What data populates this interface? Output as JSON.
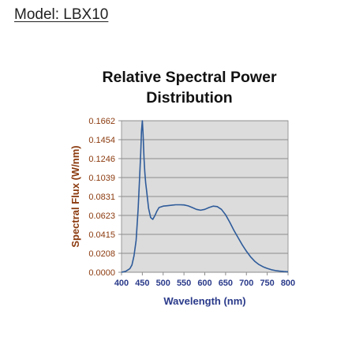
{
  "header": {
    "model_label": "Model: LBX10"
  },
  "chart_data": {
    "type": "line",
    "title_line1": "Relative Spectral Power",
    "title_line2": "Distribution",
    "xlabel": "Wavelength (nm)",
    "ylabel": "Spectral Flux (W/nm)",
    "xlim": [
      400,
      800
    ],
    "ylim": [
      0,
      0.1662
    ],
    "x_ticks": [
      "400",
      "450",
      "500",
      "550",
      "600",
      "650",
      "700",
      "750",
      "800"
    ],
    "y_ticks": [
      "0.0000",
      "0.0208",
      "0.0415",
      "0.0623",
      "0.0831",
      "0.1039",
      "0.1246",
      "0.1454",
      "0.1662"
    ],
    "grid": "horizontal",
    "plot_background": "#dcdcdc",
    "line_color": "#2e5b9a",
    "axis_text_colors": {
      "y": "#8b3a0e",
      "x": "#2a3a8a"
    },
    "series": [
      {
        "x": [
          400,
          410,
          420,
          425,
          430,
          435,
          440,
          443,
          446,
          448,
          450,
          452,
          454,
          456,
          458,
          460,
          465,
          470,
          475,
          480,
          485,
          490,
          500,
          510,
          520,
          530,
          540,
          550,
          560,
          570,
          580,
          590,
          600,
          610,
          620,
          630,
          640,
          650,
          660,
          670,
          680,
          690,
          700,
          710,
          720,
          730,
          740,
          750,
          760,
          770,
          780,
          790,
          800
        ],
        "y": [
          0.0,
          0.001,
          0.004,
          0.008,
          0.018,
          0.035,
          0.07,
          0.1,
          0.13,
          0.155,
          0.1662,
          0.15,
          0.125,
          0.11,
          0.098,
          0.09,
          0.07,
          0.06,
          0.058,
          0.062,
          0.067,
          0.071,
          0.0725,
          0.073,
          0.0735,
          0.074,
          0.074,
          0.0738,
          0.0728,
          0.071,
          0.069,
          0.068,
          0.069,
          0.071,
          0.0725,
          0.072,
          0.069,
          0.063,
          0.055,
          0.046,
          0.038,
          0.03,
          0.023,
          0.017,
          0.012,
          0.0085,
          0.006,
          0.0042,
          0.0028,
          0.0018,
          0.0012,
          0.0008,
          0.0005
        ]
      }
    ]
  }
}
